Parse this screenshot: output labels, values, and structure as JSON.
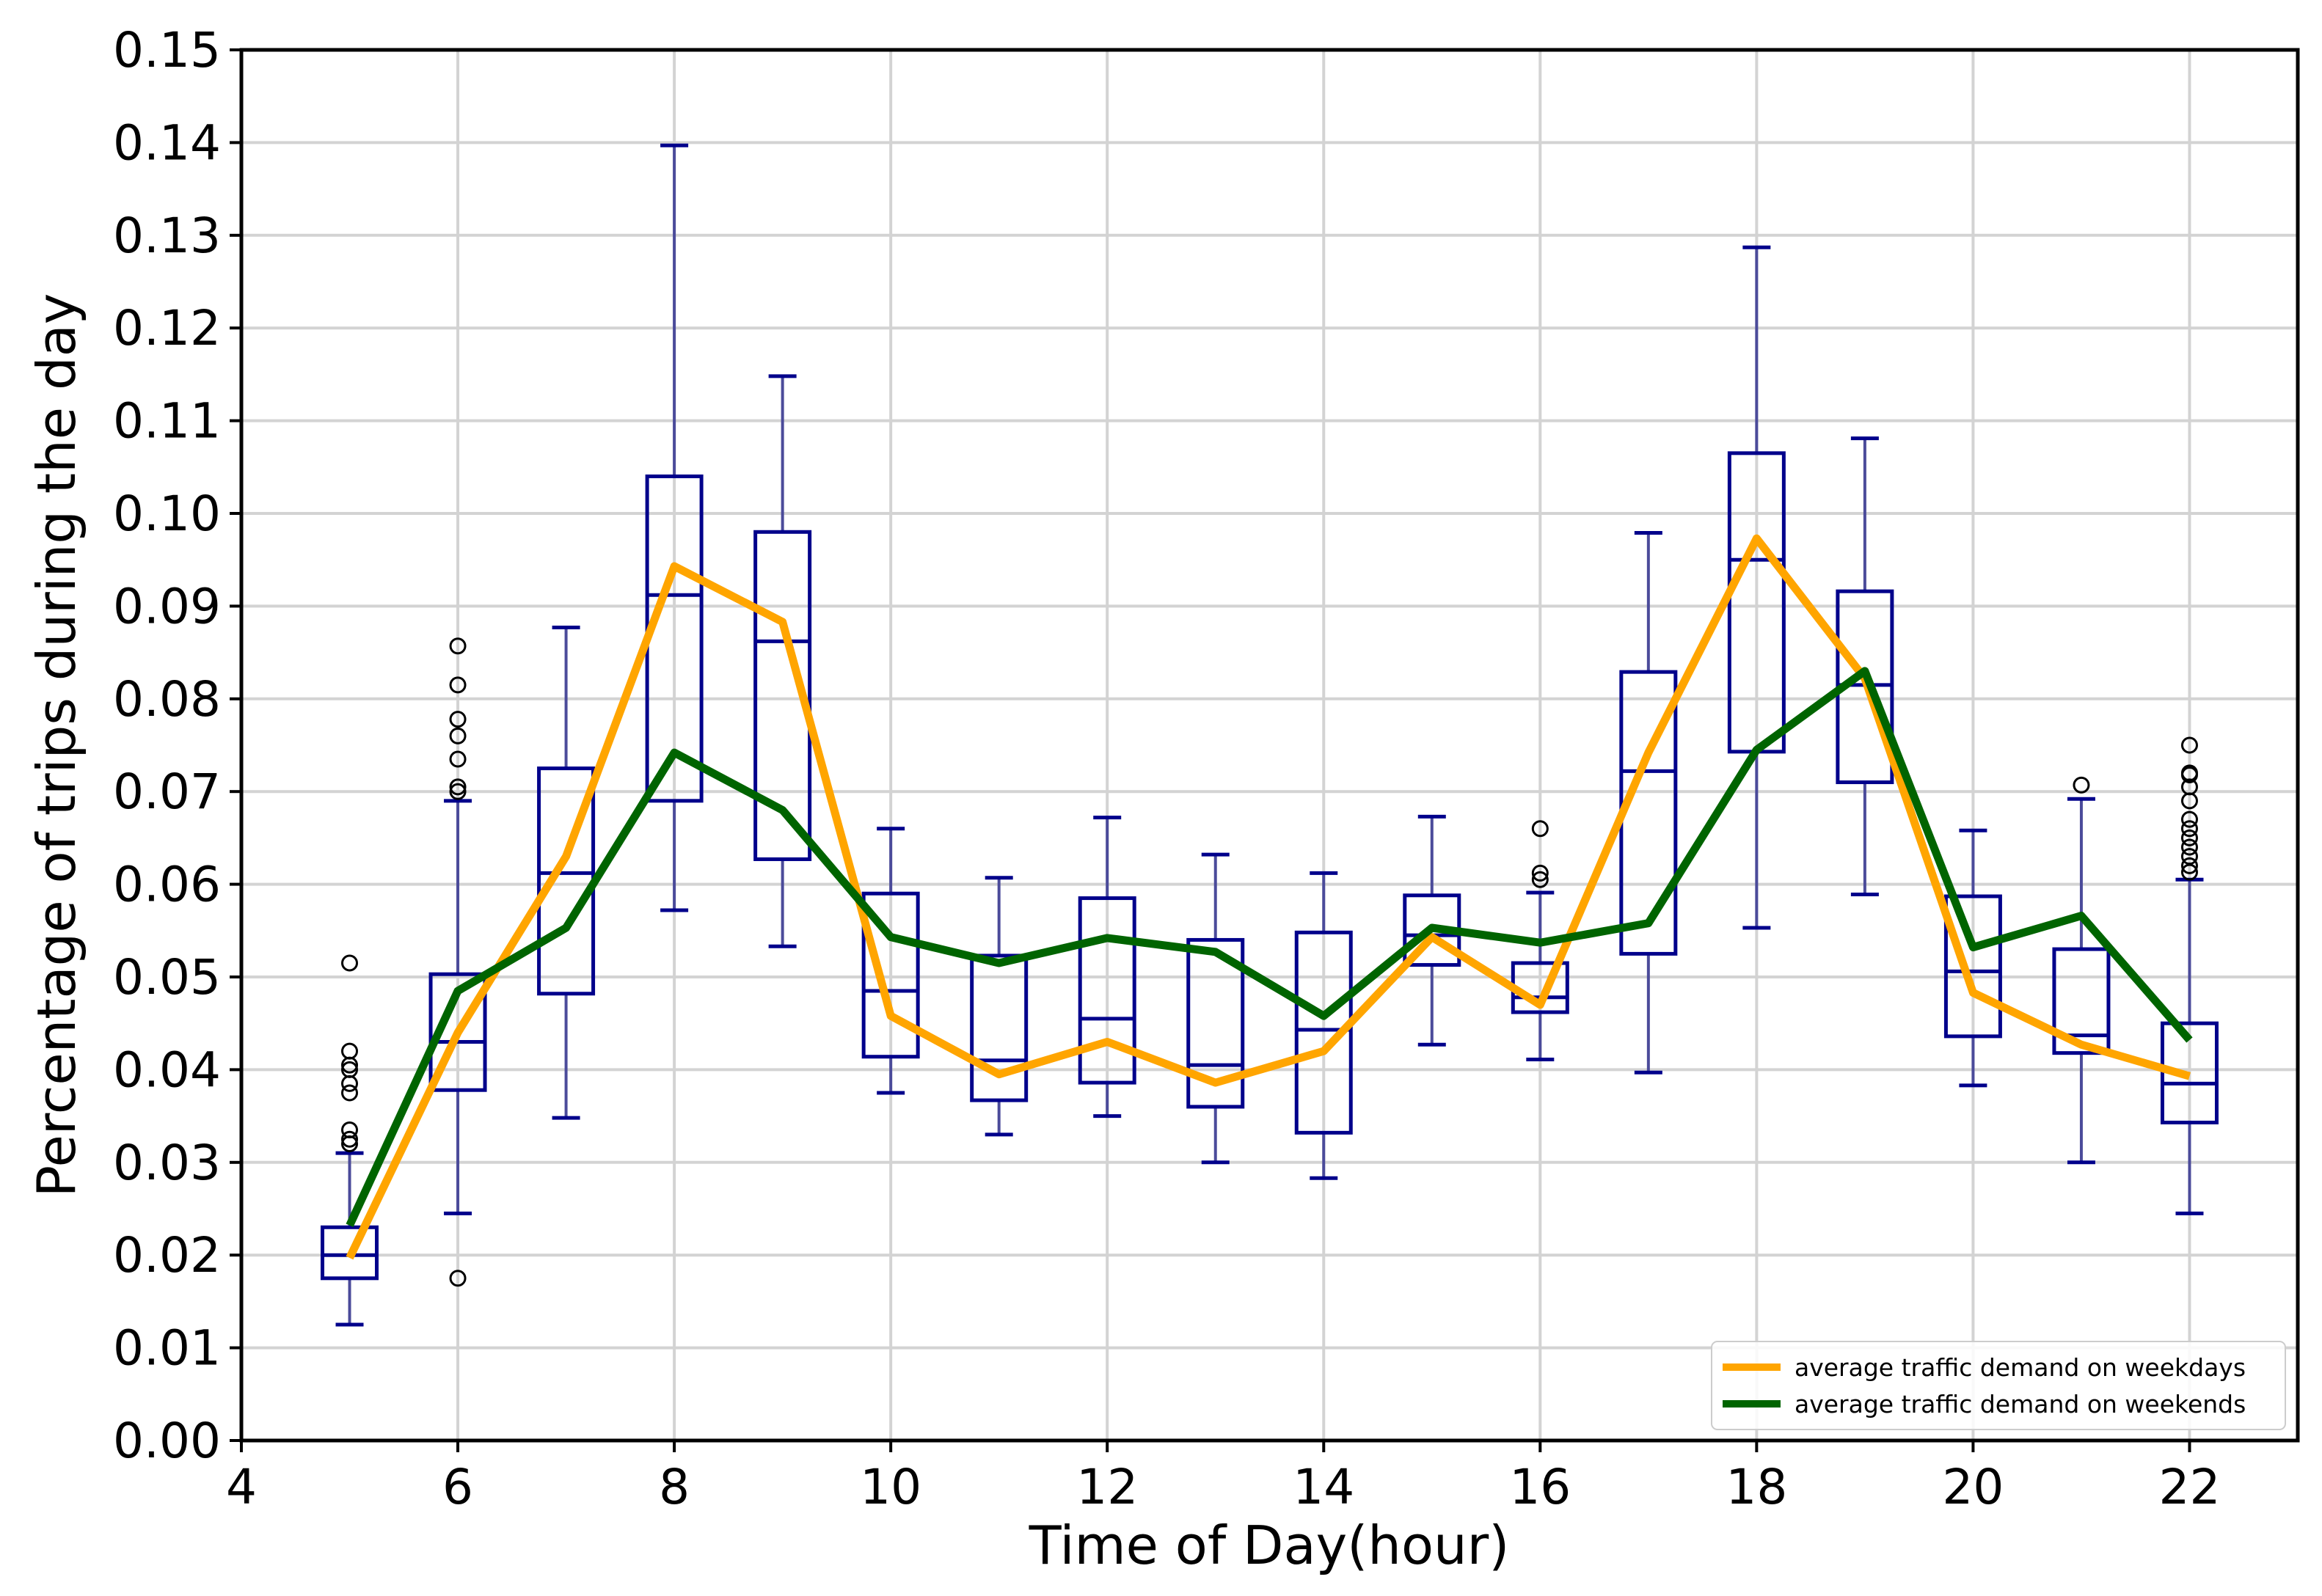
{
  "chart_data": {
    "type": "box",
    "title": "",
    "xlabel": "Time of Day(hour)",
    "ylabel": "Percentage of trips during the day",
    "xlim": [
      4,
      23
    ],
    "ylim": [
      0,
      0.15
    ],
    "x_ticks": [
      4,
      6,
      8,
      10,
      12,
      14,
      16,
      18,
      20,
      22
    ],
    "x_tick_labels": [
      "4",
      "6",
      "8",
      "10",
      "12",
      "14",
      "16",
      "18",
      "20",
      "22"
    ],
    "y_ticks": [
      0.0,
      0.01,
      0.02,
      0.03,
      0.04,
      0.05,
      0.06,
      0.07,
      0.08,
      0.09,
      0.1,
      0.11,
      0.12,
      0.13,
      0.14,
      0.15
    ],
    "y_tick_labels": [
      "0.00",
      "0.01",
      "0.02",
      "0.03",
      "0.04",
      "0.05",
      "0.06",
      "0.07",
      "0.08",
      "0.09",
      "0.10",
      "0.11",
      "0.12",
      "0.13",
      "0.14",
      "0.15"
    ],
    "grid": true,
    "legend_position": "bottom-right",
    "boxes": [
      {
        "hour": 5,
        "wlo": 0.0125,
        "q1": 0.0175,
        "median": 0.02,
        "q3": 0.023,
        "whi": 0.031,
        "outliers": [
          0.032,
          0.0325,
          0.0335,
          0.0375,
          0.0385,
          0.04,
          0.0405,
          0.042,
          0.0515
        ]
      },
      {
        "hour": 6,
        "wlo": 0.0245,
        "q1": 0.0378,
        "median": 0.043,
        "q3": 0.0503,
        "whi": 0.069,
        "outliers": [
          0.0175,
          0.07,
          0.0705,
          0.0735,
          0.076,
          0.0778,
          0.0815,
          0.0857
        ]
      },
      {
        "hour": 7,
        "wlo": 0.0348,
        "q1": 0.0482,
        "median": 0.0612,
        "q3": 0.0725,
        "whi": 0.0877,
        "outliers": []
      },
      {
        "hour": 8,
        "wlo": 0.0572,
        "q1": 0.069,
        "median": 0.0912,
        "q3": 0.104,
        "whi": 0.1397,
        "outliers": []
      },
      {
        "hour": 9,
        "wlo": 0.0533,
        "q1": 0.0627,
        "median": 0.0862,
        "q3": 0.098,
        "whi": 0.1148,
        "outliers": []
      },
      {
        "hour": 10,
        "wlo": 0.0375,
        "q1": 0.0414,
        "median": 0.0485,
        "q3": 0.059,
        "whi": 0.066,
        "outliers": []
      },
      {
        "hour": 11,
        "wlo": 0.033,
        "q1": 0.0367,
        "median": 0.041,
        "q3": 0.0523,
        "whi": 0.0607,
        "outliers": []
      },
      {
        "hour": 12,
        "wlo": 0.035,
        "q1": 0.0386,
        "median": 0.0455,
        "q3": 0.0585,
        "whi": 0.0672,
        "outliers": []
      },
      {
        "hour": 13,
        "wlo": 0.03,
        "q1": 0.036,
        "median": 0.0405,
        "q3": 0.054,
        "whi": 0.0632,
        "outliers": []
      },
      {
        "hour": 14,
        "wlo": 0.0283,
        "q1": 0.0332,
        "median": 0.0443,
        "q3": 0.0548,
        "whi": 0.0612,
        "outliers": []
      },
      {
        "hour": 15,
        "wlo": 0.0427,
        "q1": 0.0513,
        "median": 0.0545,
        "q3": 0.0588,
        "whi": 0.0673,
        "outliers": []
      },
      {
        "hour": 16,
        "wlo": 0.0411,
        "q1": 0.0462,
        "median": 0.0478,
        "q3": 0.0515,
        "whi": 0.0591,
        "outliers": [
          0.0605,
          0.0612,
          0.066
        ]
      },
      {
        "hour": 17,
        "wlo": 0.0397,
        "q1": 0.0525,
        "median": 0.0722,
        "q3": 0.0829,
        "whi": 0.0979,
        "outliers": []
      },
      {
        "hour": 18,
        "wlo": 0.0553,
        "q1": 0.0743,
        "median": 0.095,
        "q3": 0.1065,
        "whi": 0.1287,
        "outliers": []
      },
      {
        "hour": 19,
        "wlo": 0.0589,
        "q1": 0.071,
        "median": 0.0815,
        "q3": 0.0916,
        "whi": 0.1081,
        "outliers": []
      },
      {
        "hour": 20,
        "wlo": 0.0383,
        "q1": 0.0436,
        "median": 0.0506,
        "q3": 0.0587,
        "whi": 0.0658,
        "outliers": []
      },
      {
        "hour": 21,
        "wlo": 0.03,
        "q1": 0.0418,
        "median": 0.0437,
        "q3": 0.053,
        "whi": 0.0692,
        "outliers": [
          0.0707
        ]
      },
      {
        "hour": 22,
        "wlo": 0.0245,
        "q1": 0.0343,
        "median": 0.0385,
        "q3": 0.045,
        "whi": 0.0605,
        "outliers": [
          0.0613,
          0.062,
          0.063,
          0.064,
          0.065,
          0.066,
          0.067,
          0.069,
          0.0705,
          0.0718,
          0.072,
          0.075
        ]
      }
    ],
    "series": [
      {
        "name": "average traffic demand on weekdays",
        "color": "#FFA500",
        "x": [
          5,
          6,
          7,
          8,
          9,
          10,
          11,
          12,
          13,
          14,
          15,
          16,
          17,
          18,
          19,
          20,
          21,
          22
        ],
        "values": [
          0.0197,
          0.044,
          0.063,
          0.0943,
          0.0883,
          0.0458,
          0.0395,
          0.043,
          0.0386,
          0.042,
          0.0543,
          0.047,
          0.0742,
          0.0973,
          0.0822,
          0.0483,
          0.0427,
          0.0393
        ]
      },
      {
        "name": "average traffic demand on weekends",
        "color": "#006400",
        "x": [
          5,
          6,
          7,
          8,
          9,
          10,
          11,
          12,
          13,
          14,
          15,
          16,
          17,
          18,
          19,
          20,
          21,
          22
        ],
        "values": [
          0.0232,
          0.0485,
          0.0553,
          0.0742,
          0.068,
          0.0543,
          0.0515,
          0.0542,
          0.0527,
          0.0458,
          0.0553,
          0.0537,
          0.0558,
          0.0745,
          0.083,
          0.0532,
          0.0566,
          0.0432
        ]
      }
    ],
    "box_color": "#00008B",
    "whisker_color": "#4B4B9A",
    "grid_color": "#D3D3D3"
  }
}
